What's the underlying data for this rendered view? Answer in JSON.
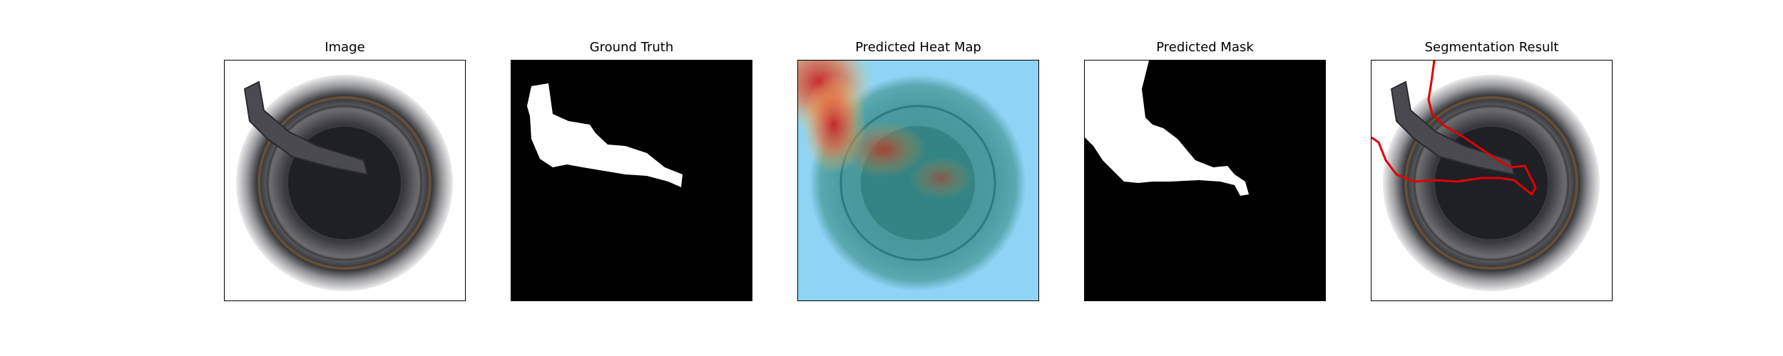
{
  "panels": [
    {
      "title": "Image"
    },
    {
      "title": "Ground Truth"
    },
    {
      "title": "Predicted Heat Map"
    },
    {
      "title": "Predicted Mask"
    },
    {
      "title": "Segmentation Result"
    }
  ],
  "colors": {
    "background": "#ffffff",
    "mask_foreground": "#ffffff",
    "mask_background": "#000000",
    "contour": "#e00000",
    "heatmap_low": "#8fd3f5",
    "heatmap_high": "#c82020"
  }
}
